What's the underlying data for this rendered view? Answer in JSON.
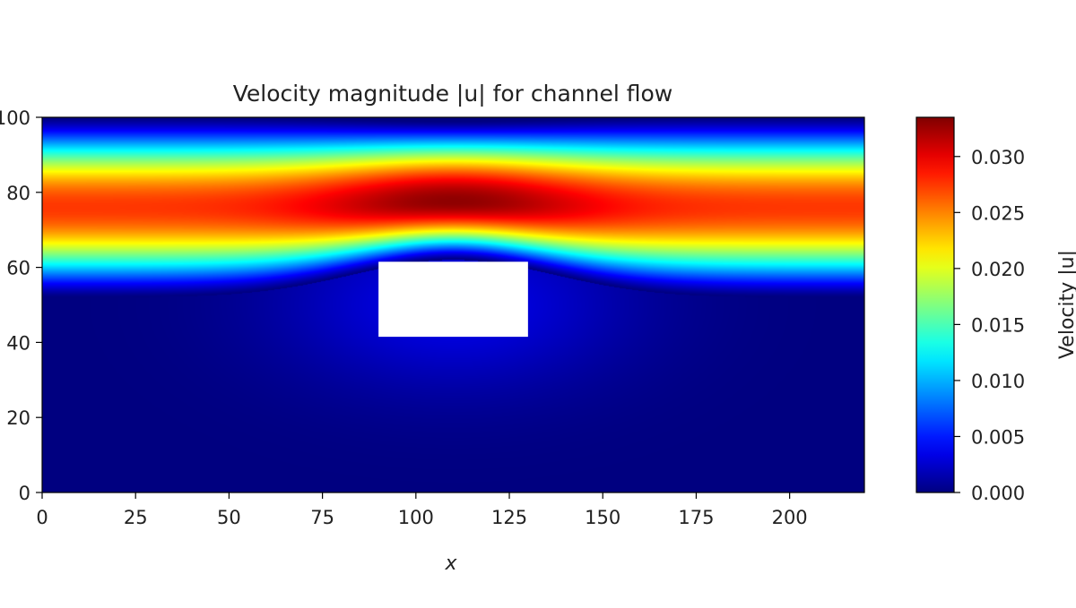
{
  "chart_data": {
    "type": "heatmap",
    "title": "Velocity magnitude |u| for channel flow",
    "xlabel": "x",
    "ylabel": "",
    "xlim": [
      0,
      220
    ],
    "ylim": [
      0,
      100
    ],
    "x_ticks": [
      0,
      25,
      50,
      75,
      100,
      125,
      150,
      175,
      200
    ],
    "x_tick_labels": [
      "0",
      "25",
      "50",
      "75",
      "100",
      "125",
      "150",
      "175",
      "200"
    ],
    "y_ticks": [
      0,
      20,
      40,
      60,
      80,
      100
    ],
    "y_tick_labels": [
      "0",
      "20",
      "40",
      "60",
      "80",
      "100"
    ],
    "colormap": "jet",
    "colorbar": {
      "label": "Velocity |u|",
      "range": [
        0,
        0.0335
      ],
      "ticks": [
        0.0,
        0.005,
        0.01,
        0.015,
        0.02,
        0.025,
        0.03
      ],
      "tick_labels": [
        "0.000",
        "0.005",
        "0.010",
        "0.015",
        "0.020",
        "0.025",
        "0.030"
      ]
    },
    "obstacle": {
      "x_range": [
        90,
        130
      ],
      "y_range": [
        41.5,
        61.5
      ],
      "color": "#ffffff"
    },
    "flow_band": {
      "y_range": [
        52,
        100
      ],
      "peak_y": 76,
      "inflow_peak_velocity": 0.0275,
      "max_velocity": 0.033,
      "max_at_x": 110
    }
  }
}
